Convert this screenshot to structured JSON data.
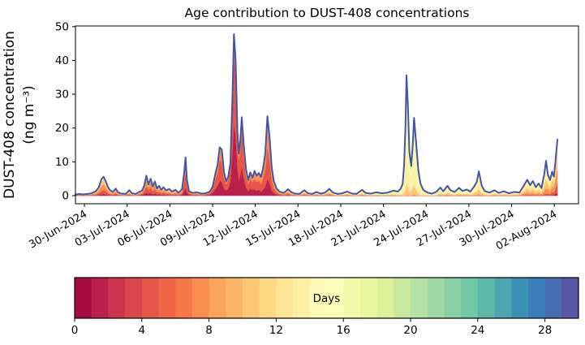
{
  "figure": {
    "background": "#ffffff",
    "title": "Age contribution to DUST-408 concentrations"
  },
  "chart_data": {
    "type": "area",
    "title": "Age contribution to DUST-408 concentrations",
    "xlabel": "",
    "ylabel_line1": "DUST-408 concentration",
    "ylabel_line2": "(ng m⁻³)",
    "x_unit_note": "t = days since 29-Jun-2024 00:00",
    "xlim_days": [
      0.37,
      35.7
    ],
    "ylim": [
      -2.4,
      50.2
    ],
    "y_ticks": [
      0,
      10,
      20,
      30,
      40,
      50
    ],
    "x_ticks": [
      {
        "day": 1,
        "label": "30-Jun-2024"
      },
      {
        "day": 4,
        "label": "03-Jul-2024"
      },
      {
        "day": 7,
        "label": "06-Jul-2024"
      },
      {
        "day": 10,
        "label": "09-Jul-2024"
      },
      {
        "day": 13,
        "label": "12-Jul-2024"
      },
      {
        "day": 16,
        "label": "15-Jul-2024"
      },
      {
        "day": 19,
        "label": "18-Jul-2024"
      },
      {
        "day": 22,
        "label": "21-Jul-2024"
      },
      {
        "day": 25,
        "label": "24-Jul-2024"
      },
      {
        "day": 28,
        "label": "27-Jul-2024"
      },
      {
        "day": 31,
        "label": "30-Jul-2024"
      },
      {
        "day": 34,
        "label": "02-Aug-2024"
      }
    ],
    "line_color": "#4556a4",
    "age_bin_centers_days": [
      1.5,
      4.5,
      7.5,
      10.5,
      13.5,
      16.5,
      19.5,
      22.5,
      25.5,
      28.5
    ],
    "age_bin_colors": [
      "#ba2049",
      "#e55649",
      "#f98e52",
      "#fec776",
      "#fff0a5",
      "#f3faac",
      "#c9e99e",
      "#89d0a5",
      "#4ca5b1",
      "#486cb0"
    ],
    "points_format": [
      "t_days",
      "total_ng_m3",
      "mean_age_days",
      "age_spread_days"
    ],
    "points": [
      [
        0.37,
        0.3,
        8,
        5
      ],
      [
        0.6,
        0.5,
        8,
        5
      ],
      [
        0.9,
        0.35,
        8,
        5
      ],
      [
        1.2,
        0.5,
        8,
        5
      ],
      [
        1.5,
        0.7,
        8,
        5
      ],
      [
        1.8,
        1.3,
        8,
        4
      ],
      [
        2.0,
        2.4,
        8,
        4
      ],
      [
        2.2,
        4.9,
        8,
        4
      ],
      [
        2.35,
        5.6,
        8,
        4
      ],
      [
        2.5,
        4.2,
        8,
        4
      ],
      [
        2.65,
        2.6,
        8,
        4
      ],
      [
        2.8,
        1.6,
        8,
        4
      ],
      [
        3.0,
        1.1,
        8,
        4
      ],
      [
        3.2,
        2.1,
        8,
        4
      ],
      [
        3.35,
        1.0,
        8,
        4
      ],
      [
        3.6,
        0.6,
        9,
        5
      ],
      [
        3.9,
        0.5,
        9,
        5
      ],
      [
        4.15,
        1.6,
        9,
        5
      ],
      [
        4.35,
        0.7,
        9,
        5
      ],
      [
        4.6,
        0.5,
        9,
        5
      ],
      [
        4.85,
        1.1,
        8,
        5
      ],
      [
        5.05,
        1.5,
        7,
        4
      ],
      [
        5.2,
        3.0,
        6,
        4
      ],
      [
        5.35,
        5.9,
        6,
        3.5
      ],
      [
        5.5,
        3.3,
        6,
        3.5
      ],
      [
        5.65,
        5.0,
        6,
        3.5
      ],
      [
        5.8,
        2.7,
        6,
        3.5
      ],
      [
        5.95,
        4.2,
        6,
        3.5
      ],
      [
        6.1,
        2.1,
        6,
        3.5
      ],
      [
        6.25,
        2.9,
        7,
        4
      ],
      [
        6.4,
        1.7,
        7,
        4
      ],
      [
        6.55,
        2.5,
        7,
        4
      ],
      [
        6.75,
        1.5,
        7,
        4
      ],
      [
        6.95,
        2.0,
        8,
        4
      ],
      [
        7.15,
        1.2,
        8,
        4
      ],
      [
        7.4,
        1.7,
        8,
        4
      ],
      [
        7.6,
        0.8,
        8,
        4
      ],
      [
        7.85,
        1.9,
        7,
        4
      ],
      [
        8.0,
        6.5,
        5,
        3
      ],
      [
        8.1,
        11.3,
        5,
        3
      ],
      [
        8.2,
        4.6,
        5,
        3
      ],
      [
        8.35,
        1.3,
        6,
        3.5
      ],
      [
        8.6,
        0.8,
        7,
        4
      ],
      [
        8.9,
        1.0,
        7,
        4
      ],
      [
        9.2,
        0.6,
        7,
        4
      ],
      [
        9.5,
        0.7,
        6,
        4
      ],
      [
        9.8,
        1.2,
        5,
        3.5
      ],
      [
        10.0,
        2.6,
        4,
        3
      ],
      [
        10.2,
        6.6,
        4,
        3
      ],
      [
        10.35,
        9.1,
        4,
        3
      ],
      [
        10.5,
        14.3,
        4,
        3
      ],
      [
        10.65,
        13.6,
        4,
        3
      ],
      [
        10.8,
        7.1,
        4,
        3
      ],
      [
        10.95,
        4.2,
        3.5,
        3
      ],
      [
        11.1,
        5.6,
        3.5,
        3
      ],
      [
        11.25,
        9.6,
        3,
        2.5
      ],
      [
        11.4,
        30.0,
        3,
        2.5
      ],
      [
        11.5,
        47.8,
        3,
        2.5
      ],
      [
        11.62,
        40.0,
        3,
        2.5
      ],
      [
        11.75,
        18.5,
        3,
        2.5
      ],
      [
        11.85,
        12.5,
        3.5,
        2.5
      ],
      [
        11.95,
        16.5,
        3.5,
        2.5
      ],
      [
        12.05,
        23.2,
        3.5,
        2.5
      ],
      [
        12.2,
        14.5,
        3.5,
        3
      ],
      [
        12.35,
        7.8,
        4,
        3
      ],
      [
        12.5,
        4.6,
        4,
        3
      ],
      [
        12.65,
        6.9,
        4,
        3
      ],
      [
        12.8,
        5.3,
        4,
        3
      ],
      [
        12.95,
        7.3,
        4.5,
        3
      ],
      [
        13.1,
        5.9,
        4.5,
        3
      ],
      [
        13.25,
        6.7,
        4.5,
        3
      ],
      [
        13.4,
        5.5,
        5,
        3
      ],
      [
        13.55,
        8.2,
        5,
        3
      ],
      [
        13.7,
        12.5,
        5,
        3
      ],
      [
        13.85,
        23.5,
        5,
        3
      ],
      [
        14.0,
        17.5,
        5,
        3
      ],
      [
        14.15,
        8.5,
        5.5,
        3
      ],
      [
        14.3,
        4.3,
        6,
        3.5
      ],
      [
        14.5,
        2.1,
        6,
        4
      ],
      [
        14.7,
        1.2,
        7,
        4
      ],
      [
        15.0,
        0.8,
        8,
        4
      ],
      [
        15.3,
        1.9,
        8,
        4
      ],
      [
        15.55,
        1.0,
        9,
        4
      ],
      [
        15.8,
        0.6,
        9,
        5
      ],
      [
        16.1,
        0.5,
        10,
        5
      ],
      [
        16.45,
        1.6,
        10,
        5
      ],
      [
        16.7,
        0.7,
        10,
        5
      ],
      [
        17.0,
        0.5,
        10,
        5
      ],
      [
        17.3,
        1.1,
        11,
        5
      ],
      [
        17.6,
        0.6,
        11,
        5
      ],
      [
        17.9,
        0.9,
        11,
        5
      ],
      [
        18.2,
        2.0,
        11,
        5
      ],
      [
        18.45,
        0.9,
        12,
        5
      ],
      [
        18.8,
        0.5,
        12,
        5
      ],
      [
        19.1,
        0.7,
        12,
        5
      ],
      [
        19.45,
        1.2,
        12,
        5
      ],
      [
        19.8,
        0.6,
        12,
        5
      ],
      [
        20.1,
        0.5,
        13,
        5
      ],
      [
        20.5,
        1.7,
        13,
        5
      ],
      [
        20.75,
        0.8,
        13,
        5
      ],
      [
        21.1,
        0.6,
        13,
        5
      ],
      [
        21.5,
        1.0,
        14,
        5
      ],
      [
        21.9,
        0.7,
        14,
        5
      ],
      [
        22.3,
        0.9,
        14,
        5
      ],
      [
        22.7,
        1.5,
        14,
        4
      ],
      [
        23.0,
        1.2,
        15,
        4
      ],
      [
        23.2,
        2.0,
        15,
        3
      ],
      [
        23.35,
        3.5,
        15,
        3
      ],
      [
        23.45,
        9.0,
        15,
        2.5
      ],
      [
        23.55,
        21.0,
        15,
        2.5
      ],
      [
        23.62,
        35.6,
        15,
        2.5
      ],
      [
        23.72,
        26.5,
        15,
        2.5
      ],
      [
        23.82,
        13.0,
        15,
        2.5
      ],
      [
        23.95,
        8.8,
        15,
        3
      ],
      [
        24.05,
        14.5,
        15,
        3
      ],
      [
        24.15,
        23.0,
        15,
        3
      ],
      [
        24.3,
        15.5,
        15.5,
        3
      ],
      [
        24.45,
        7.5,
        16,
        3
      ],
      [
        24.6,
        3.6,
        16,
        3
      ],
      [
        24.8,
        1.7,
        16,
        4
      ],
      [
        25.1,
        0.9,
        15,
        4
      ],
      [
        25.4,
        0.6,
        15,
        4
      ],
      [
        25.7,
        1.1,
        15,
        4
      ],
      [
        26.0,
        2.4,
        14,
        4
      ],
      [
        26.2,
        1.3,
        14,
        4
      ],
      [
        26.5,
        2.9,
        14,
        4
      ],
      [
        26.7,
        1.6,
        14,
        4
      ],
      [
        27.0,
        1.1,
        14,
        4
      ],
      [
        27.3,
        2.3,
        14,
        4
      ],
      [
        27.55,
        1.4,
        14,
        4
      ],
      [
        27.85,
        1.8,
        14,
        4
      ],
      [
        28.1,
        1.2,
        14,
        4
      ],
      [
        28.35,
        2.6,
        14,
        3.5
      ],
      [
        28.55,
        4.0,
        14,
        3.5
      ],
      [
        28.7,
        7.2,
        14,
        3.5
      ],
      [
        28.9,
        3.0,
        14,
        3.5
      ],
      [
        29.1,
        1.4,
        14,
        4
      ],
      [
        29.45,
        0.9,
        14,
        4
      ],
      [
        29.8,
        1.6,
        13,
        4
      ],
      [
        30.1,
        0.8,
        13,
        4
      ],
      [
        30.45,
        1.3,
        13,
        4
      ],
      [
        30.8,
        0.7,
        13,
        4
      ],
      [
        31.2,
        1.1,
        13,
        4
      ],
      [
        31.55,
        0.9,
        12,
        4
      ],
      [
        31.85,
        2.9,
        12,
        4
      ],
      [
        32.1,
        4.7,
        12,
        4
      ],
      [
        32.3,
        3.1,
        12,
        4
      ],
      [
        32.5,
        4.3,
        12,
        4
      ],
      [
        32.7,
        2.5,
        12,
        4
      ],
      [
        32.9,
        3.6,
        12,
        4
      ],
      [
        33.1,
        2.2,
        12,
        4
      ],
      [
        33.3,
        6.5,
        12,
        4
      ],
      [
        33.42,
        10.3,
        12,
        4
      ],
      [
        33.55,
        6.2,
        11,
        4
      ],
      [
        33.7,
        4.6,
        11,
        4
      ],
      [
        33.85,
        7.1,
        10,
        4
      ],
      [
        33.97,
        5.6,
        10,
        4
      ],
      [
        34.1,
        11.0,
        9,
        4
      ],
      [
        34.22,
        16.6,
        9,
        4
      ]
    ],
    "colorbar": {
      "label": "Days",
      "ticks": [
        0,
        4,
        8,
        12,
        16,
        20,
        24,
        28
      ],
      "range_days": [
        0,
        30
      ],
      "n_segments": 30,
      "segment_colors": [
        "#a70b44",
        "#ba2049",
        "#cc344d",
        "#da464d",
        "#e55649",
        "#ef6545",
        "#f67848",
        "#f98e52",
        "#fca35c",
        "#fdb668",
        "#fec776",
        "#fed884",
        "#fee594",
        "#fff0a5",
        "#fffab6",
        "#fbfdb9",
        "#f3faac",
        "#eaf79f",
        "#dcf19a",
        "#c9e99e",
        "#b5e1a2",
        "#a0d9a4",
        "#89d0a5",
        "#72c7a5",
        "#5db8a9",
        "#4ca5b1",
        "#3b92b9",
        "#397fb9",
        "#486cb0",
        "#5759a7"
      ]
    }
  }
}
